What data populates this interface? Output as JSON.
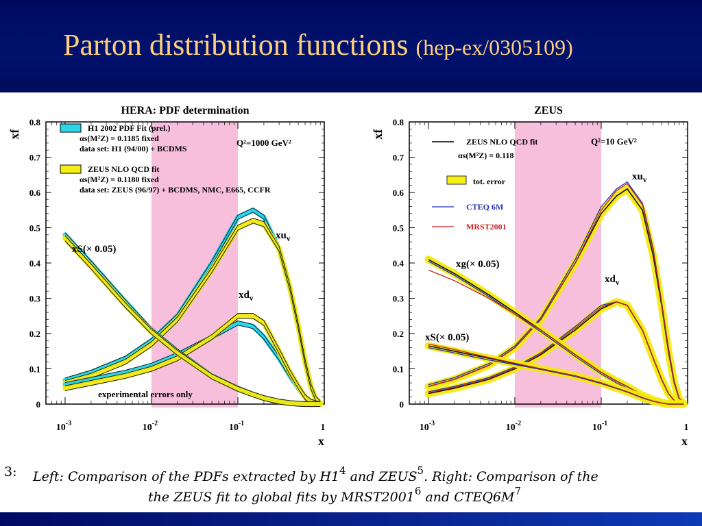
{
  "slide": {
    "title": "Parton distribution functions",
    "subtitle": "(hep-ex/0305109)"
  },
  "caption": {
    "number": "3:",
    "line1_a": "Left: Comparison of the PDFs extracted by H1",
    "ref1": "4",
    "line1_b": "and ZEUS",
    "ref2": "5",
    "line1_c": ". Right: Comparison of the",
    "line2_a": "the ZEUS fit to global fits by MRST2001",
    "ref3": "6",
    "line2_b": "and CTEQ6M",
    "ref4": "7"
  },
  "chart_data": [
    {
      "type": "line",
      "title": "HERA: PDF determination",
      "xlabel": "x",
      "ylabel": "xf",
      "xscale": "log",
      "xlim": [
        0.0006,
        1
      ],
      "ylim": [
        0,
        0.8
      ],
      "x_ticks": [
        "10^-3",
        "10^-2",
        "10^-1",
        "1"
      ],
      "y_ticks": [
        "0",
        "0.1",
        "0.2",
        "0.3",
        "0.4",
        "0.5",
        "0.6",
        "0.7",
        "0.8"
      ],
      "highlight_region": [
        0.01,
        0.1
      ],
      "q2_label": "Q²=1000 GeV²",
      "footer_note": "experimental errors only",
      "legend": [
        {
          "name": "H1 2002 PDF Fit (prel.)",
          "color": "#2ad8e8",
          "lines": [
            "αs(M²Z) = 0.1185 fixed",
            "data set: H1 (94/00) + BCDMS"
          ]
        },
        {
          "name": "ZEUS NLO QCD fit",
          "color": "#f5ee17",
          "lines": [
            "αs(M²Z) = 0.1180 fixed",
            "data set: ZEUS (96/97) + BCDMS, NMC, E665, CCFR"
          ]
        }
      ],
      "curve_labels": [
        "xS(× 0.05)",
        "xu_v",
        "xd_v"
      ],
      "x": [
        0.001,
        0.002,
        0.005,
        0.01,
        0.02,
        0.05,
        0.1,
        0.15,
        0.2,
        0.3,
        0.4,
        0.5,
        0.6,
        0.7,
        0.8,
        0.9
      ],
      "series": [
        {
          "name": "xu_v",
          "band": "H1",
          "values": [
            0.068,
            0.09,
            0.13,
            0.18,
            0.25,
            0.4,
            0.53,
            0.55,
            0.53,
            0.44,
            0.33,
            0.22,
            0.12,
            0.05,
            0.015,
            0.002
          ]
        },
        {
          "name": "xu_v",
          "band": "ZEUS",
          "values": [
            0.06,
            0.08,
            0.12,
            0.17,
            0.24,
            0.38,
            0.5,
            0.52,
            0.51,
            0.44,
            0.33,
            0.22,
            0.12,
            0.05,
            0.015,
            0.002
          ]
        },
        {
          "name": "xd_v",
          "band": "H1",
          "values": [
            0.055,
            0.07,
            0.09,
            0.11,
            0.14,
            0.19,
            0.23,
            0.22,
            0.19,
            0.13,
            0.08,
            0.045,
            0.02,
            0.007,
            0.002,
            0.0
          ]
        },
        {
          "name": "xd_v",
          "band": "ZEUS",
          "values": [
            0.045,
            0.06,
            0.08,
            0.1,
            0.13,
            0.19,
            0.25,
            0.25,
            0.23,
            0.15,
            0.09,
            0.05,
            0.02,
            0.007,
            0.002,
            0.0
          ]
        },
        {
          "name": "xS(× 0.05)",
          "band": "H1",
          "values": [
            0.48,
            0.4,
            0.29,
            0.21,
            0.15,
            0.08,
            0.045,
            0.028,
            0.018,
            0.008,
            0.003,
            0.001,
            0.0,
            0.0,
            0.0,
            0.0
          ]
        },
        {
          "name": "xS(× 0.05)",
          "band": "ZEUS",
          "values": [
            0.47,
            0.39,
            0.28,
            0.205,
            0.145,
            0.078,
            0.043,
            0.027,
            0.017,
            0.007,
            0.003,
            0.001,
            0.0,
            0.0,
            0.0,
            0.0
          ]
        }
      ]
    },
    {
      "type": "line",
      "title": "ZEUS",
      "xlabel": "x",
      "ylabel": "xf",
      "xscale": "log",
      "xlim": [
        0.0006,
        1
      ],
      "ylim": [
        0,
        0.8
      ],
      "x_ticks": [
        "10^-3",
        "10^-2",
        "10^-1",
        "1"
      ],
      "y_ticks": [
        "0",
        "0.1",
        "0.2",
        "0.3",
        "0.4",
        "0.5",
        "0.6",
        "0.7",
        "0.8"
      ],
      "highlight_region": [
        0.01,
        0.1
      ],
      "q2_label": "Q²=10 GeV²",
      "legend": [
        {
          "name": "ZEUS NLO QCD fit",
          "color": "#000000",
          "lines": [
            "αs(M²Z) = 0.118"
          ]
        },
        {
          "name": "tot. error",
          "color": "#f5ee17"
        },
        {
          "name": "CTEQ 6M",
          "color": "#2233bb"
        },
        {
          "name": "MRST2001",
          "color": "#cc2222"
        }
      ],
      "curve_labels": [
        "xu_v",
        "xd_v",
        "xg(× 0.05)",
        "xS(× 0.05)"
      ],
      "x": [
        0.001,
        0.002,
        0.005,
        0.01,
        0.02,
        0.05,
        0.1,
        0.15,
        0.2,
        0.3,
        0.4,
        0.5,
        0.6,
        0.7,
        0.8,
        0.9
      ],
      "series": [
        {
          "name": "xu_v ZEUS",
          "values": [
            0.05,
            0.07,
            0.11,
            0.16,
            0.24,
            0.4,
            0.54,
            0.59,
            0.61,
            0.55,
            0.42,
            0.28,
            0.15,
            0.06,
            0.015,
            0.002
          ]
        },
        {
          "name": "xu_v CTEQ 6M",
          "values": [
            0.055,
            0.075,
            0.115,
            0.165,
            0.245,
            0.41,
            0.56,
            0.61,
            0.63,
            0.57,
            0.44,
            0.29,
            0.16,
            0.065,
            0.017,
            0.002
          ]
        },
        {
          "name": "xu_v MRST2001",
          "values": [
            0.05,
            0.07,
            0.11,
            0.16,
            0.24,
            0.4,
            0.55,
            0.605,
            0.625,
            0.565,
            0.435,
            0.285,
            0.155,
            0.062,
            0.016,
            0.002
          ]
        },
        {
          "name": "xd_v ZEUS",
          "values": [
            0.03,
            0.045,
            0.07,
            0.1,
            0.14,
            0.21,
            0.27,
            0.29,
            0.28,
            0.21,
            0.13,
            0.07,
            0.03,
            0.01,
            0.002,
            0.0
          ]
        },
        {
          "name": "xd_v CTEQ 6M",
          "values": [
            0.035,
            0.05,
            0.075,
            0.105,
            0.145,
            0.22,
            0.28,
            0.29,
            0.28,
            0.21,
            0.13,
            0.07,
            0.03,
            0.01,
            0.002,
            0.0
          ]
        },
        {
          "name": "xd_v MRST2001",
          "values": [
            0.032,
            0.047,
            0.072,
            0.102,
            0.142,
            0.215,
            0.275,
            0.29,
            0.28,
            0.21,
            0.13,
            0.07,
            0.03,
            0.01,
            0.002,
            0.0
          ]
        },
        {
          "name": "xg(× 0.05) ZEUS",
          "values": [
            0.41,
            0.37,
            0.31,
            0.26,
            0.21,
            0.14,
            0.09,
            0.065,
            0.05,
            0.025,
            0.012,
            0.005,
            0.0,
            0.0,
            0.0,
            0.0
          ]
        },
        {
          "name": "xg(× 0.05) CTEQ 6M",
          "values": [
            0.405,
            0.365,
            0.305,
            0.255,
            0.205,
            0.135,
            0.085,
            0.06,
            0.045,
            0.022,
            0.01,
            0.004,
            0.0,
            0.0,
            0.0,
            0.0
          ]
        },
        {
          "name": "xg(× 0.05) MRST2001",
          "values": [
            0.38,
            0.35,
            0.3,
            0.255,
            0.21,
            0.14,
            0.09,
            0.065,
            0.05,
            0.025,
            0.012,
            0.005,
            0.0,
            0.0,
            0.0,
            0.0
          ]
        },
        {
          "name": "xS(× 0.05) ZEUS",
          "values": [
            0.165,
            0.15,
            0.13,
            0.115,
            0.1,
            0.08,
            0.06,
            0.045,
            0.035,
            0.018,
            0.008,
            0.003,
            0.0,
            0.0,
            0.0,
            0.0
          ]
        },
        {
          "name": "xS(× 0.05) CTEQ 6M",
          "values": [
            0.16,
            0.145,
            0.125,
            0.112,
            0.098,
            0.078,
            0.058,
            0.044,
            0.034,
            0.017,
            0.008,
            0.003,
            0.0,
            0.0,
            0.0,
            0.0
          ]
        },
        {
          "name": "xS(× 0.05) MRST2001",
          "values": [
            0.17,
            0.155,
            0.132,
            0.116,
            0.1,
            0.08,
            0.06,
            0.045,
            0.035,
            0.018,
            0.008,
            0.003,
            0.0,
            0.0,
            0.0,
            0.0
          ]
        }
      ]
    }
  ]
}
